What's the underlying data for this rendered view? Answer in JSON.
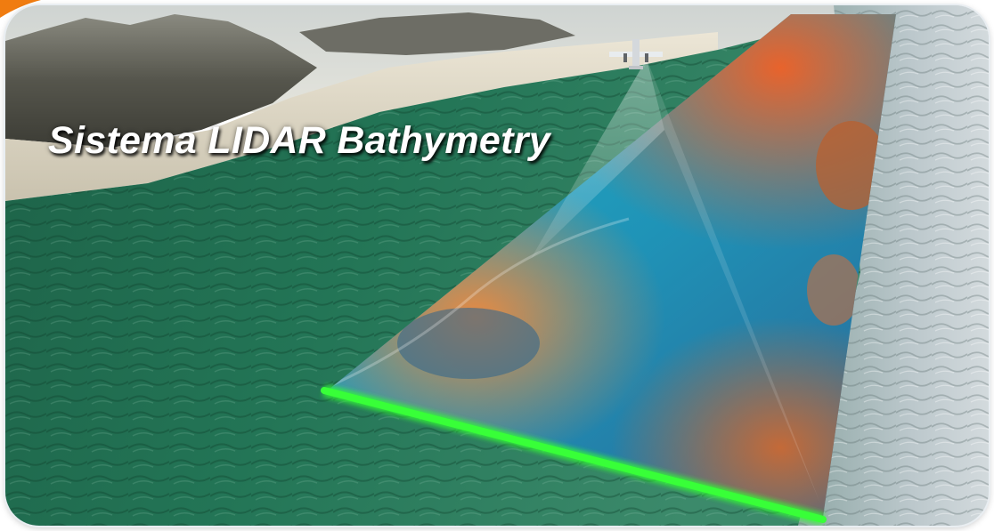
{
  "title": "Sistema LIDAR Bathymetry",
  "scene": {
    "water_color": "#1f6b4e",
    "water_shallow_color": "#3a8e6c",
    "clear_water_color": "#b9c6cc",
    "sand_color": "#d8d2c1",
    "mountain_color": "#4a4a42",
    "scan_line_color": "#33ff33",
    "accent_color": "#f07c10",
    "depth_colors": [
      "#e3612b",
      "#e88a42",
      "#2fc2c8",
      "#1c8fb0",
      "#2f5f8f",
      "#b96a3c"
    ]
  }
}
